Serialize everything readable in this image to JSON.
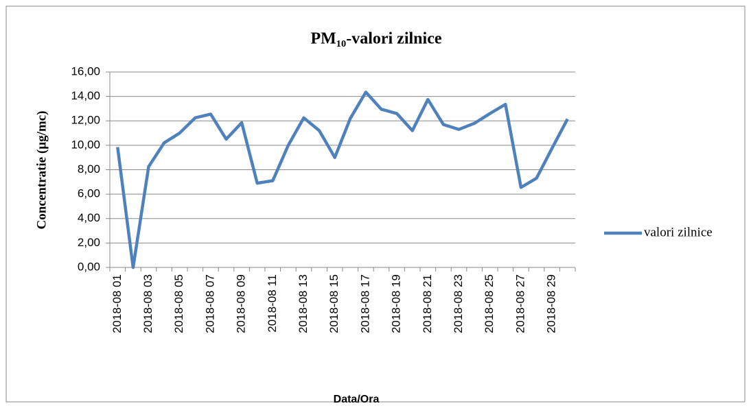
{
  "chart_data": {
    "type": "line",
    "title": "PM₁₀-valori zilnice",
    "y_label": "Concentratie (µg/mc)",
    "x_label": "Data/Ora",
    "categories": [
      "2018-08 01",
      null,
      "2018-08 03",
      null,
      "2018-08 05",
      null,
      "2018-08 07",
      null,
      "2018-08 09",
      null,
      "2018-08 11",
      null,
      "2018-08 13",
      null,
      "2018-08 15",
      null,
      "2018-08 17",
      null,
      "2018-08 19",
      null,
      "2018-08 21",
      null,
      "2018-08 23",
      null,
      "2018-08 25",
      null,
      "2018-08 27",
      null,
      "2018-08 29",
      null
    ],
    "series": [
      {
        "name": "valori zilnice",
        "color": "#4f81bd",
        "values": [
          9.85,
          0.0,
          8.25,
          10.2,
          11.0,
          12.25,
          12.55,
          10.5,
          11.85,
          6.9,
          7.1,
          10.0,
          12.25,
          11.2,
          9.0,
          12.2,
          14.35,
          12.95,
          12.6,
          11.2,
          13.75,
          11.7,
          11.3,
          11.8,
          12.6,
          13.35,
          6.55,
          7.3,
          9.75,
          12.15
        ]
      }
    ],
    "ylim": [
      0,
      16
    ],
    "yticks": [
      {
        "value": 0,
        "label": "0,00"
      },
      {
        "value": 2,
        "label": "2,00"
      },
      {
        "value": 4,
        "label": "4,00"
      },
      {
        "value": 6,
        "label": "6,00"
      },
      {
        "value": 8,
        "label": "8,00"
      },
      {
        "value": 10,
        "label": "10,00"
      },
      {
        "value": 12,
        "label": "12,00"
      },
      {
        "value": 14,
        "label": "14,00"
      },
      {
        "value": 16,
        "label": "16,00"
      }
    ],
    "grid": true,
    "legend": "right"
  }
}
